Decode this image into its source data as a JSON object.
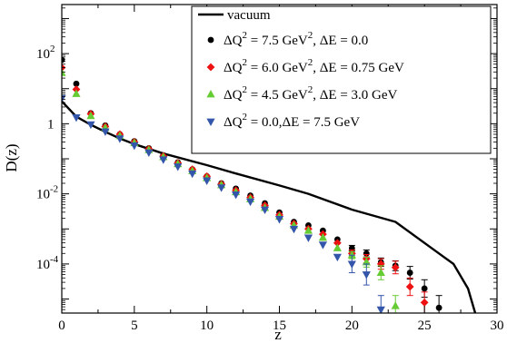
{
  "chart_data": {
    "type": "scatter",
    "title": "",
    "xlabel": "z",
    "ylabel": "D(z)",
    "xlim": [
      0,
      30
    ],
    "ylim_log10": [
      -5.4,
      3.4
    ],
    "y_scale": "log",
    "grid": false,
    "legend_position": "top-right",
    "x_ticks": [
      0,
      5,
      10,
      15,
      20,
      25,
      30
    ],
    "x_tick_labels": [
      "0",
      "5",
      "10",
      "15",
      "20",
      "25",
      "30"
    ],
    "y_ticks_log10": [
      2,
      0,
      -2,
      -4
    ],
    "y_tick_labels": [
      {
        "base": "10",
        "exp": "2"
      },
      {
        "base": "1",
        "exp": ""
      },
      {
        "base": "10",
        "exp": "-2"
      },
      {
        "base": "10",
        "exp": "-4"
      }
    ],
    "series": [
      {
        "name": "vacuum",
        "label_parts": [
          "vacuum"
        ],
        "kind": "line",
        "color": "#000000",
        "x": [
          0,
          1,
          2,
          3,
          4,
          5,
          7,
          10,
          12,
          15,
          17,
          20,
          23,
          26,
          27,
          28,
          28.5
        ],
        "y_log10": [
          0.64,
          0.2,
          -0.03,
          -0.23,
          -0.42,
          -0.58,
          -0.85,
          -1.18,
          -1.42,
          -1.76,
          -2.0,
          -2.45,
          -2.8,
          -3.7,
          -4.0,
          -4.7,
          -5.4
        ]
      },
      {
        "name": "ΔQ2 = 7.5 GeV2, ΔE = 0.0",
        "label_parts": [
          "ΔQ",
          "2",
          " = 7.5 GeV",
          "2",
          ",  ΔE = 0.0"
        ],
        "kind": "points",
        "marker": "circle",
        "color": "#000000",
        "x": [
          0,
          1,
          2,
          3,
          4,
          5,
          6,
          7,
          8,
          9,
          10,
          11,
          12,
          13,
          14,
          15,
          16,
          17,
          18,
          19,
          20,
          21,
          22,
          23,
          24,
          25,
          26
        ],
        "y_log10": [
          1.82,
          1.14,
          0.3,
          -0.05,
          -0.3,
          -0.5,
          -0.7,
          -0.9,
          -1.1,
          -1.3,
          -1.5,
          -1.7,
          -1.85,
          -2.05,
          -2.27,
          -2.53,
          -2.8,
          -2.9,
          -3.05,
          -3.3,
          -3.55,
          -3.7,
          -3.95,
          -4.05,
          -4.25,
          -4.7,
          -5.25
        ],
        "err_log10": [
          0,
          0,
          0,
          0,
          0,
          0,
          0,
          0,
          0,
          0,
          0,
          0,
          0,
          0,
          0,
          0,
          0,
          0,
          0,
          0,
          0.08,
          0.1,
          0.12,
          0.14,
          0.18,
          0.25,
          0.35
        ]
      },
      {
        "name": "ΔQ2 = 6.0 GeV2, ΔE = 0.75 GeV",
        "label_parts": [
          "ΔQ",
          "2",
          " = 6.0 GeV",
          "2",
          ", ΔE = 0.75 GeV"
        ],
        "kind": "points",
        "marker": "diamond",
        "color": "#ee1111",
        "x": [
          0,
          1,
          2,
          3,
          4,
          5,
          6,
          7,
          8,
          9,
          10,
          11,
          12,
          13,
          14,
          15,
          16,
          17,
          18,
          19,
          20,
          21,
          22,
          23,
          24,
          25
        ],
        "y_log10": [
          1.6,
          0.98,
          0.28,
          -0.08,
          -0.3,
          -0.52,
          -0.72,
          -0.92,
          -1.12,
          -1.3,
          -1.5,
          -1.72,
          -1.9,
          -2.1,
          -2.33,
          -2.6,
          -2.85,
          -3.0,
          -3.15,
          -3.4,
          -3.7,
          -3.85,
          -4.0,
          -4.1,
          -4.65,
          -5.1
        ],
        "err_log10": [
          0,
          0,
          0,
          0,
          0,
          0,
          0,
          0,
          0,
          0,
          0,
          0,
          0,
          0,
          0,
          0,
          0,
          0,
          0,
          0,
          0.1,
          0.12,
          0.15,
          0.18,
          0.25,
          0.3
        ]
      },
      {
        "name": "ΔQ2 = 4.5 GeV2, ΔE = 3.0 GeV",
        "label_parts": [
          "ΔQ",
          "2",
          " = 4.5 GeV",
          "2",
          ", ΔE = 3.0 GeV"
        ],
        "kind": "points",
        "marker": "triangle-up",
        "color": "#66cc33",
        "x": [
          0,
          1,
          2,
          3,
          4,
          5,
          6,
          7,
          8,
          9,
          10,
          11,
          12,
          13,
          14,
          15,
          16,
          17,
          18,
          19,
          20,
          21,
          22,
          23
        ],
        "y_log10": [
          1.45,
          0.85,
          0.22,
          -0.12,
          -0.35,
          -0.55,
          -0.75,
          -0.95,
          -1.15,
          -1.35,
          -1.55,
          -1.75,
          -1.95,
          -2.15,
          -2.4,
          -2.65,
          -2.9,
          -3.05,
          -3.25,
          -3.55,
          -3.75,
          -3.95,
          -4.25,
          -5.2
        ],
        "err_log10": [
          0,
          0,
          0,
          0,
          0,
          0,
          0,
          0,
          0,
          0,
          0,
          0,
          0,
          0,
          0,
          0,
          0,
          0,
          0,
          0,
          0.1,
          0.14,
          0.2,
          0.3
        ]
      },
      {
        "name": "ΔQ2 = 0.0,ΔE = 7.5 GeV",
        "label_parts": [
          "ΔQ",
          "2",
          " = 0.0,ΔE = 7.5 GeV",
          "",
          ""
        ],
        "kind": "points",
        "marker": "triangle-down",
        "color": "#3355aa",
        "x": [
          0,
          1,
          2,
          3,
          4,
          5,
          6,
          7,
          8,
          9,
          10,
          11,
          12,
          13,
          14,
          15,
          16,
          17,
          18,
          19,
          20,
          21,
          22
        ],
        "y_log10": [
          0.73,
          0.18,
          -0.02,
          -0.22,
          -0.42,
          -0.62,
          -0.82,
          -1.02,
          -1.22,
          -1.42,
          -1.62,
          -1.82,
          -2.02,
          -2.22,
          -2.45,
          -2.72,
          -3.0,
          -3.25,
          -3.45,
          -3.8,
          -4.0,
          -4.3,
          -5.3
        ],
        "err_log10": [
          0,
          0,
          0,
          0,
          0,
          0,
          0,
          0,
          0,
          0,
          0,
          0,
          0,
          0,
          0,
          0,
          0,
          0,
          0,
          0,
          0.25,
          0.3,
          0.4
        ]
      }
    ]
  }
}
